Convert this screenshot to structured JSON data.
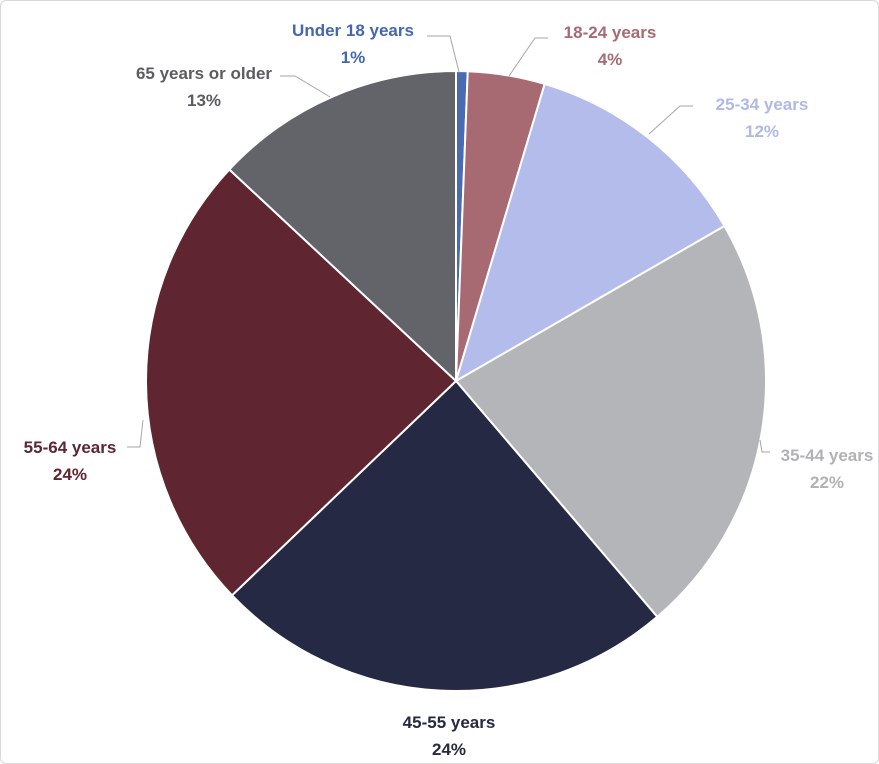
{
  "chart_data": {
    "type": "pie",
    "title": "",
    "legend": "none",
    "slices": [
      {
        "label": "Under 18 years",
        "value": 0.6,
        "display": "1%",
        "color": "#4a6bb0",
        "label_color": "#4467ad"
      },
      {
        "label": "18-24 years",
        "value": 4,
        "display": "4%",
        "color": "#a86a72",
        "label_color": "#a86a72"
      },
      {
        "label": "25-34 years",
        "value": 12,
        "display": "12%",
        "color": "#b3bcea",
        "label_color": "#aeb9e6"
      },
      {
        "label": "35-44 years",
        "value": 22,
        "display": "22%",
        "color": "#b4b5b9",
        "label_color": "#b1b2b6"
      },
      {
        "label": "45-55 years",
        "value": 24,
        "display": "24%",
        "color": "#262943",
        "label_color": "#262943"
      },
      {
        "label": "55-64 years",
        "value": 24,
        "display": "24%",
        "color": "#5f2632",
        "label_color": "#5f2632"
      },
      {
        "label": "65 years or older",
        "value": 13,
        "display": "13%",
        "color": "#636469",
        "label_color": "#5c5d62"
      }
    ]
  }
}
